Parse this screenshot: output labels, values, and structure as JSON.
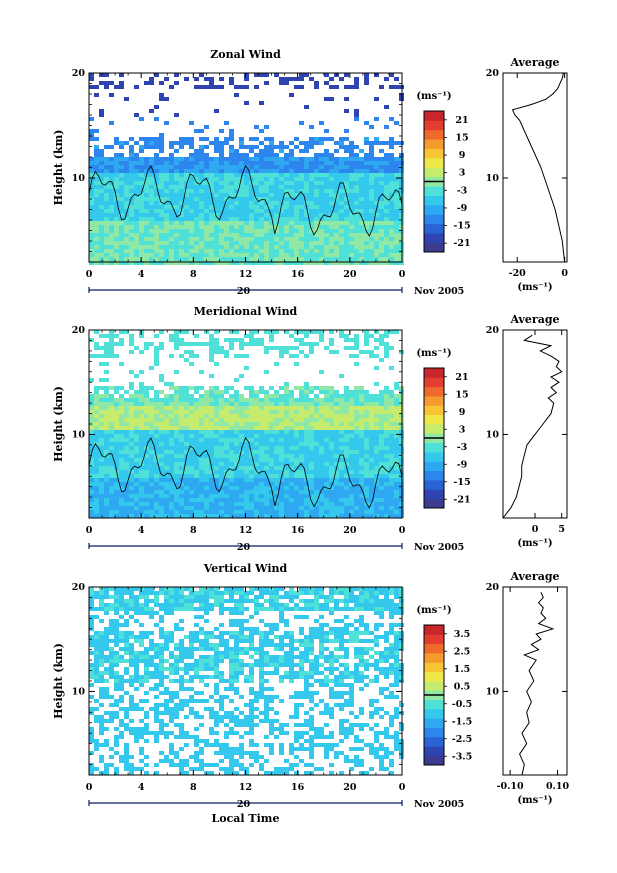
{
  "figure": {
    "date_label": "Nov 2005",
    "date_day": "20",
    "x_axis_label": "Local Time",
    "y_axis_label": "Height (km)"
  },
  "colorbar_palette": [
    "#3b3b8f",
    "#2f44b0",
    "#2a63d6",
    "#2d86ee",
    "#2fa8f2",
    "#33c8ec",
    "#4fe0d8",
    "#8fe8a6",
    "#c6ec6e",
    "#f0e84a",
    "#f7c435",
    "#f59a2c",
    "#ef6a2c",
    "#e43d2f",
    "#c8252c"
  ],
  "chart_data": [
    {
      "type": "heatmap",
      "title": "Zonal Wind",
      "unit": "(ms⁻¹)",
      "xlabel": "",
      "ylabel": "Height (km)",
      "x_ticks": [
        "0",
        "4",
        "8",
        "12",
        "16",
        "20",
        "0"
      ],
      "y_ticks": [
        "20",
        "10"
      ],
      "xlim": [
        0,
        24
      ],
      "ylim": [
        2,
        20
      ],
      "colorbar_ticks": [
        "21",
        "15",
        "9",
        "3",
        "-3",
        "-9",
        "-15",
        "-21"
      ],
      "colorbar_range": [
        -24,
        24
      ],
      "profile": {
        "title": "Average",
        "x_ticks": [
          "-20",
          "0"
        ],
        "xlim": [
          -26,
          1
        ],
        "y_ticks": [
          "20",
          "10"
        ],
        "unit": "(ms⁻¹)",
        "heights": [
          2,
          3,
          4,
          5,
          6,
          7,
          8,
          9,
          10,
          11,
          12,
          13,
          14,
          15,
          15.5,
          16,
          16.5,
          17,
          17.5,
          18,
          18.5,
          19,
          19.5,
          20
        ],
        "values": [
          0,
          -0.5,
          -1,
          -2,
          -3,
          -4,
          -5.5,
          -7,
          -8.5,
          -10,
          -12,
          -14,
          -16,
          -18,
          -19,
          -21,
          -22,
          -14,
          -8,
          -5,
          -3,
          -2,
          -1,
          -0.5
        ]
      }
    },
    {
      "type": "heatmap",
      "title": "Meridional Wind",
      "unit": "(ms⁻¹)",
      "xlabel": "",
      "ylabel": "Height (km)",
      "x_ticks": [
        "0",
        "4",
        "8",
        "12",
        "16",
        "20",
        "0"
      ],
      "y_ticks": [
        "20",
        "10"
      ],
      "xlim": [
        0,
        24
      ],
      "ylim": [
        2,
        20
      ],
      "colorbar_ticks": [
        "21",
        "15",
        "9",
        "3",
        "-3",
        "-9",
        "-15",
        "-21"
      ],
      "colorbar_range": [
        -24,
        24
      ],
      "profile": {
        "title": "Average",
        "x_ticks": [
          "0",
          "5"
        ],
        "xlim": [
          -6,
          6
        ],
        "y_ticks": [
          "20",
          "10"
        ],
        "unit": "(ms⁻¹)",
        "heights": [
          2,
          3,
          4,
          5,
          6,
          7,
          8,
          9,
          10,
          11,
          12,
          13,
          13.5,
          14,
          14.5,
          15,
          15.5,
          16,
          16.5,
          17,
          17.5,
          18,
          18.5,
          19,
          19.5
        ],
        "values": [
          -6,
          -4.5,
          -3.5,
          -3,
          -2.5,
          -2.5,
          -2,
          -1.5,
          0,
          1.5,
          3,
          3.5,
          2.5,
          4,
          3,
          4.5,
          3,
          5,
          4,
          4.5,
          3,
          1,
          3,
          -2,
          -0.5
        ]
      }
    },
    {
      "type": "heatmap",
      "title": "Vertical Wind",
      "unit": "(ms⁻¹)",
      "xlabel": "Local Time",
      "ylabel": "Height (km)",
      "x_ticks": [
        "0",
        "4",
        "8",
        "12",
        "16",
        "20",
        "0"
      ],
      "y_ticks": [
        "20",
        "10"
      ],
      "xlim": [
        0,
        24
      ],
      "ylim": [
        2,
        20
      ],
      "colorbar_ticks": [
        "3.5",
        "2.5",
        "1.5",
        "0.5",
        "-0.5",
        "-1.5",
        "-2.5",
        "-3.5"
      ],
      "colorbar_range": [
        -4,
        4
      ],
      "profile": {
        "title": "Average",
        "x_ticks": [
          "-0.10",
          "0.10"
        ],
        "xlim": [
          -0.13,
          0.14
        ],
        "y_ticks": [
          "20",
          "10"
        ],
        "unit": "(ms⁻¹)",
        "heights": [
          2,
          3,
          4,
          5,
          6,
          7,
          8,
          9,
          10,
          11,
          12,
          13,
          13.5,
          14,
          14.5,
          15,
          15.5,
          16,
          16.5,
          17,
          17.5,
          18,
          18.5,
          19,
          19.5
        ],
        "values": [
          -0.05,
          -0.04,
          -0.06,
          -0.03,
          -0.05,
          -0.02,
          -0.03,
          -0.01,
          -0.03,
          0.0,
          -0.02,
          0.01,
          -0.04,
          0.02,
          -0.01,
          0.03,
          0.01,
          0.08,
          0.02,
          0.05,
          0.03,
          0.04,
          0.02,
          0.04,
          0.03
        ]
      }
    }
  ]
}
